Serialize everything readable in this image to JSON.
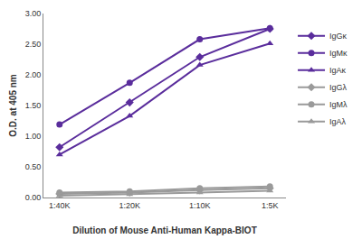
{
  "chart_data": {
    "type": "line",
    "x_label": "Dilution of Mouse Anti-Human Kappa-BIOT",
    "y_label": "O.D. at 405 nm",
    "categories": [
      "1:40K",
      "1:20K",
      "1:10K",
      "1:5K"
    ],
    "series": [
      {
        "name": "IgGκ",
        "color": "#5a2d9c",
        "marker": "diamond",
        "line_style": "solid",
        "values": [
          0.82,
          1.55,
          2.29,
          2.75
        ]
      },
      {
        "name": "IgMκ",
        "color": "#5a2d9c",
        "marker": "circle",
        "line_style": "solid",
        "values": [
          1.19,
          1.87,
          2.58,
          2.76
        ]
      },
      {
        "name": "IgAκ",
        "color": "#5a2d9c",
        "marker": "triangle-up",
        "line_style": "solid",
        "values": [
          0.7,
          1.33,
          2.16,
          2.51
        ]
      },
      {
        "name": "IgGλ",
        "color": "#9a9a9a",
        "marker": "diamond",
        "line_style": "solid",
        "values": [
          0.06,
          0.08,
          0.12,
          0.15
        ]
      },
      {
        "name": "IgMλ",
        "color": "#9a9a9a",
        "marker": "circle",
        "line_style": "solid",
        "values": [
          0.08,
          0.1,
          0.15,
          0.18
        ]
      },
      {
        "name": "IgAλ",
        "color": "#9a9a9a",
        "marker": "triangle-up",
        "line_style": "solid",
        "values": [
          0.03,
          0.05,
          0.08,
          0.11
        ]
      }
    ],
    "ylim": [
      0,
      3
    ],
    "yticks": [
      {
        "value": 0,
        "label": "0.00"
      },
      {
        "value": 0.5,
        "label": "0.50"
      },
      {
        "value": 1,
        "label": "1.00"
      },
      {
        "value": 1.5,
        "label": "1.50"
      },
      {
        "value": 2,
        "label": "2.00"
      },
      {
        "value": 2.5,
        "label": "2.50"
      },
      {
        "value": 3,
        "label": "3.00"
      }
    ],
    "grid": false,
    "legend": "right"
  }
}
